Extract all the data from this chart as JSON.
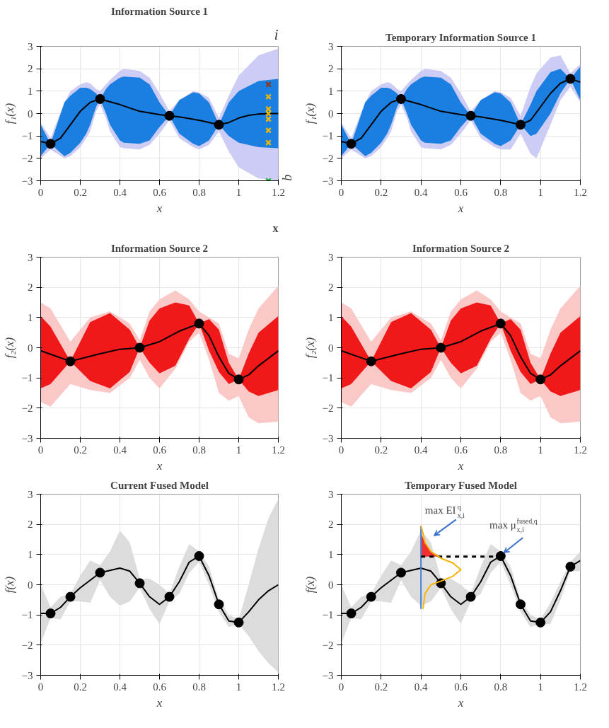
{
  "chart_data": [
    {
      "type": "line",
      "title": "Information Source 1",
      "xlabel": "x",
      "ylabel": "f₁(x)",
      "xlim": [
        0,
        1.2
      ],
      "ylim": [
        -3,
        3
      ],
      "xticks": [
        0,
        0.2,
        0.4,
        0.6,
        0.8,
        1,
        1.2
      ],
      "yticks": [
        -3,
        -2,
        -1,
        0,
        1,
        2,
        3
      ],
      "grid": true,
      "series": [
        {
          "color": "#ccccf5",
          "x": [
            0,
            0.05,
            0.12,
            0.15,
            0.2,
            0.23,
            0.25,
            0.28,
            0.3,
            0.33,
            0.35,
            0.4,
            0.42,
            0.5,
            0.55,
            0.6,
            0.65,
            0.7,
            0.77,
            0.8,
            0.85,
            0.9,
            0.95,
            1.0,
            1.1,
            1.2
          ],
          "values": [
            null,
            null,
            null,
            null,
            null,
            null,
            null,
            null,
            null,
            null,
            null,
            null,
            null,
            null,
            null,
            null,
            null,
            null,
            null,
            null,
            null,
            null,
            null,
            null,
            null,
            null
          ],
          "lower": [
            -2.0,
            -1.6,
            -2.0,
            -1.9,
            -1.5,
            -1.1,
            -0.8,
            0.1,
            0.4,
            -0.2,
            -0.8,
            -1.5,
            -1.55,
            -1.6,
            -1.4,
            -0.9,
            -0.3,
            -1.1,
            -1.5,
            -1.6,
            -1.4,
            -0.8,
            -1.7,
            -2.4,
            -2.9,
            -3.0
          ],
          "upper": [
            -0.4,
            -1.1,
            0.5,
            1.0,
            1.3,
            1.4,
            1.35,
            1.1,
            1.0,
            1.3,
            1.5,
            1.9,
            2.0,
            1.9,
            1.6,
            0.9,
            0.1,
            0.6,
            1.0,
            0.95,
            0.7,
            -0.2,
            0.8,
            1.7,
            2.6,
            2.9
          ]
        },
        {
          "color": "#1a7fe0",
          "x": [
            0,
            0.05,
            0.12,
            0.15,
            0.2,
            0.23,
            0.25,
            0.28,
            0.3,
            0.33,
            0.35,
            0.4,
            0.42,
            0.5,
            0.55,
            0.6,
            0.65,
            0.7,
            0.77,
            0.8,
            0.85,
            0.9,
            0.95,
            1.0,
            1.1,
            1.2
          ],
          "values": [
            null,
            null,
            null,
            null,
            null,
            null,
            null,
            null,
            null,
            null,
            null,
            null,
            null,
            null,
            null,
            null,
            null,
            null,
            null,
            null,
            null,
            null,
            null,
            null,
            null,
            null
          ],
          "lower": [
            -1.9,
            -1.35,
            -1.9,
            -1.75,
            -1.3,
            -0.9,
            -0.5,
            0.3,
            0.65,
            0.0,
            -0.5,
            -1.2,
            -1.3,
            -1.35,
            -1.2,
            -0.6,
            -0.1,
            -0.9,
            -1.35,
            -1.45,
            -1.2,
            -0.5,
            -1.0,
            -1.3,
            -1.5,
            -1.55
          ],
          "upper": [
            -0.5,
            -1.35,
            0.5,
            0.8,
            1.15,
            1.15,
            1.1,
            0.9,
            0.65,
            1.1,
            1.3,
            1.6,
            1.65,
            1.6,
            1.3,
            0.5,
            -0.1,
            0.6,
            0.95,
            0.9,
            0.5,
            -0.5,
            0.5,
            1.0,
            1.45,
            1.55
          ]
        },
        {
          "color": "#000000",
          "x": [
            0,
            0.05,
            0.1,
            0.15,
            0.2,
            0.25,
            0.3,
            0.4,
            0.5,
            0.6,
            0.65,
            0.7,
            0.8,
            0.9,
            0.95,
            1.0,
            1.05,
            1.1,
            1.15,
            1.2
          ],
          "values": [
            -1.25,
            -1.35,
            -1.1,
            -0.5,
            0.1,
            0.5,
            0.65,
            0.4,
            0.1,
            -0.05,
            -0.1,
            -0.15,
            -0.3,
            -0.5,
            -0.4,
            -0.2,
            -0.08,
            -0.02,
            0,
            0
          ]
        },
        {
          "type": "scatter",
          "color": "#000000",
          "marker": "circle",
          "x": [
            0.05,
            0.3,
            0.65,
            0.9
          ],
          "values": [
            -1.35,
            0.65,
            -0.1,
            -0.5
          ]
        },
        {
          "type": "scatter",
          "marker": "cross",
          "colors": [
            "#8b3a1a",
            "#f2b800",
            "#f2b800",
            "#f2b800",
            "#f2b800",
            "#f2b800",
            "#f2b800",
            "#20b040"
          ],
          "x": [
            1.15,
            1.15,
            1.15,
            1.15,
            1.15,
            1.15,
            1.15,
            1.15
          ],
          "values": [
            1.3,
            0.75,
            0.2,
            0,
            -0.25,
            -0.75,
            -1.3,
            -3.0
          ]
        }
      ],
      "annotations": [
        "i",
        "q",
        "x"
      ]
    },
    {
      "type": "line",
      "title": "Temporary Information Source 1",
      "xlabel": "x",
      "ylabel": "f₁(x)",
      "xlim": [
        0,
        1.2
      ],
      "ylim": [
        -3,
        3
      ],
      "xticks": [
        0,
        0.2,
        0.4,
        0.6,
        0.8,
        1,
        1.2
      ],
      "yticks": [
        -3,
        -2,
        -1,
        0,
        1,
        2,
        3
      ],
      "grid": true,
      "series": [
        {
          "color": "#ccccf5",
          "x": [
            0,
            0.05,
            0.12,
            0.15,
            0.2,
            0.23,
            0.25,
            0.28,
            0.3,
            0.33,
            0.35,
            0.4,
            0.42,
            0.5,
            0.55,
            0.6,
            0.65,
            0.7,
            0.77,
            0.8,
            0.85,
            0.9,
            0.95,
            0.98,
            1.05,
            1.1,
            1.15,
            1.2
          ],
          "values": [
            null,
            null,
            null,
            null,
            null,
            null,
            null,
            null,
            null,
            null,
            null,
            null,
            null,
            null,
            null,
            null,
            null,
            null,
            null,
            null,
            null,
            null,
            null,
            null,
            null,
            null,
            null,
            null
          ],
          "lower": [
            -2.0,
            -1.6,
            -2.0,
            -1.9,
            -1.5,
            -1.1,
            -0.8,
            0.1,
            0.4,
            -0.2,
            -0.8,
            -1.5,
            -1.55,
            -1.6,
            -1.4,
            -0.9,
            -0.3,
            -1.1,
            -1.5,
            -1.6,
            -1.6,
            -0.9,
            -1.8,
            -2.0,
            -0.5,
            0.6,
            1.2,
            0.5
          ],
          "upper": [
            -0.4,
            -1.1,
            0.5,
            1.0,
            1.3,
            1.4,
            1.35,
            1.1,
            1.0,
            1.3,
            1.5,
            1.9,
            2.0,
            1.9,
            1.6,
            0.9,
            0.1,
            0.6,
            1.0,
            0.95,
            0.7,
            -0.1,
            1.2,
            1.8,
            2.5,
            2.6,
            1.8,
            2.2
          ]
        },
        {
          "color": "#1a7fe0",
          "x": [
            0,
            0.05,
            0.12,
            0.15,
            0.2,
            0.23,
            0.25,
            0.28,
            0.3,
            0.33,
            0.35,
            0.4,
            0.42,
            0.5,
            0.55,
            0.6,
            0.65,
            0.7,
            0.77,
            0.8,
            0.85,
            0.9,
            0.95,
            0.98,
            1.05,
            1.1,
            1.15,
            1.2
          ],
          "values": [
            null,
            null,
            null,
            null,
            null,
            null,
            null,
            null,
            null,
            null,
            null,
            null,
            null,
            null,
            null,
            null,
            null,
            null,
            null,
            null,
            null,
            null,
            null,
            null,
            null,
            null,
            null,
            null
          ],
          "lower": [
            -1.9,
            -1.35,
            -1.9,
            -1.75,
            -1.3,
            -0.9,
            -0.5,
            0.3,
            0.65,
            0.0,
            -0.5,
            -1.2,
            -1.3,
            -1.35,
            -1.2,
            -0.6,
            -0.1,
            -0.9,
            -1.35,
            -1.45,
            -1.2,
            -0.5,
            -1.0,
            -0.9,
            0.0,
            0.9,
            1.55,
            0.6
          ],
          "upper": [
            -0.5,
            -1.35,
            0.5,
            0.8,
            1.15,
            1.15,
            1.1,
            0.9,
            0.65,
            1.1,
            1.3,
            1.6,
            1.65,
            1.6,
            1.3,
            0.5,
            -0.1,
            0.6,
            0.95,
            0.9,
            0.5,
            -0.5,
            0.4,
            1.0,
            1.85,
            2.0,
            1.55,
            2.1
          ]
        },
        {
          "color": "#000000",
          "x": [
            0,
            0.05,
            0.1,
            0.15,
            0.2,
            0.25,
            0.3,
            0.4,
            0.5,
            0.6,
            0.65,
            0.7,
            0.8,
            0.9,
            0.95,
            1.0,
            1.05,
            1.1,
            1.15,
            1.2
          ],
          "values": [
            -1.25,
            -1.35,
            -1.1,
            -0.5,
            0.1,
            0.5,
            0.65,
            0.4,
            0.1,
            -0.05,
            -0.1,
            -0.15,
            -0.3,
            -0.5,
            -0.3,
            0.3,
            0.9,
            1.35,
            1.55,
            1.4
          ]
        },
        {
          "type": "scatter",
          "color": "#000000",
          "marker": "circle",
          "x": [
            0.05,
            0.3,
            0.65,
            0.9,
            1.15
          ],
          "values": [
            -1.35,
            0.65,
            -0.1,
            -0.5,
            1.55
          ]
        }
      ]
    },
    {
      "type": "line",
      "title": "Information Source 2",
      "xlabel": "x",
      "ylabel": "f₂(x)",
      "xlim": [
        0,
        1.2
      ],
      "ylim": [
        -3,
        3
      ],
      "xticks": [
        0,
        0.2,
        0.4,
        0.6,
        0.8,
        1,
        1.2
      ],
      "yticks": [
        -3,
        -2,
        -1,
        0,
        1,
        2,
        3
      ],
      "grid": true,
      "series": [
        {
          "color": "#fbc8c8",
          "x": [
            0,
            0.05,
            0.15,
            0.25,
            0.35,
            0.45,
            0.5,
            0.55,
            0.6,
            0.68,
            0.75,
            0.8,
            0.85,
            0.9,
            0.95,
            1.0,
            1.05,
            1.1,
            1.2
          ],
          "values": [
            null,
            null,
            null,
            null,
            null,
            null,
            null,
            null,
            null,
            null,
            null,
            null,
            null,
            null,
            null,
            null,
            null,
            null,
            null
          ],
          "lower": [
            -1.8,
            -1.95,
            -1.2,
            -1.4,
            -1.5,
            -1.0,
            -0.4,
            -1.0,
            -1.35,
            -0.7,
            0.2,
            0.5,
            -0.4,
            -1.5,
            -1.75,
            -1.6,
            -2.3,
            -2.5,
            -2.45
          ],
          "upper": [
            1.5,
            1.3,
            0.2,
            1.0,
            1.2,
            0.8,
            0.25,
            1.2,
            1.6,
            1.9,
            1.6,
            1.2,
            1.0,
            0.8,
            -0.2,
            -0.35,
            0.6,
            1.3,
            2.05
          ]
        },
        {
          "color": "#f01818",
          "x": [
            0,
            0.05,
            0.15,
            0.25,
            0.35,
            0.45,
            0.5,
            0.55,
            0.6,
            0.68,
            0.75,
            0.8,
            0.85,
            0.9,
            0.95,
            1.0,
            1.05,
            1.1,
            1.2
          ],
          "values": [
            null,
            null,
            null,
            null,
            null,
            null,
            null,
            null,
            null,
            null,
            null,
            null,
            null,
            null,
            null,
            null,
            null,
            null,
            null
          ],
          "lower": [
            -1.35,
            -1.2,
            -0.45,
            -1.1,
            -1.35,
            -0.8,
            0,
            -0.5,
            -0.85,
            -0.6,
            0.3,
            0.8,
            -0.1,
            -0.8,
            -1.2,
            -1.05,
            -1.45,
            -1.6,
            -1.4
          ],
          "upper": [
            1.05,
            0.7,
            -0.45,
            0.85,
            1.15,
            0.6,
            0,
            0.9,
            1.3,
            1.5,
            1.4,
            0.8,
            0.95,
            0.6,
            -0.5,
            -1.05,
            -0.2,
            0.5,
            1.05
          ]
        },
        {
          "color": "#000000",
          "x": [
            0,
            0.15,
            0.3,
            0.4,
            0.5,
            0.6,
            0.7,
            0.8,
            0.85,
            0.9,
            0.95,
            1.0,
            1.05,
            1.1,
            1.2
          ],
          "values": [
            -0.1,
            -0.45,
            -0.2,
            -0.05,
            0,
            0.2,
            0.55,
            0.8,
            0.4,
            -0.3,
            -0.85,
            -1.05,
            -0.9,
            -0.6,
            -0.1
          ]
        },
        {
          "type": "scatter",
          "color": "#000000",
          "marker": "circle",
          "x": [
            0.15,
            0.5,
            0.8,
            1.0
          ],
          "values": [
            -0.45,
            0,
            0.8,
            -1.05
          ]
        }
      ]
    },
    {
      "type": "line",
      "title": "Information Source 2",
      "xlabel": "x",
      "ylabel": "f₂(x)",
      "xlim": [
        0,
        1.2
      ],
      "ylim": [
        -3,
        3
      ],
      "xticks": [
        0,
        0.2,
        0.4,
        0.6,
        0.8,
        1,
        1.2
      ],
      "yticks": [
        -3,
        -2,
        -1,
        0,
        1,
        2,
        3
      ],
      "grid": true,
      "series": [
        {
          "color": "#fbc8c8",
          "x": [
            0,
            0.05,
            0.15,
            0.25,
            0.35,
            0.45,
            0.5,
            0.55,
            0.6,
            0.68,
            0.75,
            0.8,
            0.85,
            0.9,
            0.95,
            1.0,
            1.05,
            1.1,
            1.2
          ],
          "values": [
            null,
            null,
            null,
            null,
            null,
            null,
            null,
            null,
            null,
            null,
            null,
            null,
            null,
            null,
            null,
            null,
            null,
            null,
            null
          ],
          "lower": [
            -1.8,
            -1.95,
            -1.2,
            -1.4,
            -1.5,
            -1.0,
            -0.4,
            -1.0,
            -1.35,
            -0.7,
            0.2,
            0.5,
            -0.4,
            -1.5,
            -1.75,
            -1.6,
            -2.3,
            -2.5,
            -2.45
          ],
          "upper": [
            1.5,
            1.3,
            0.2,
            1.0,
            1.2,
            0.8,
            0.25,
            1.2,
            1.6,
            1.9,
            1.6,
            1.2,
            1.0,
            0.8,
            -0.2,
            -0.35,
            0.6,
            1.3,
            2.05
          ]
        },
        {
          "color": "#f01818",
          "x": [
            0,
            0.05,
            0.15,
            0.25,
            0.35,
            0.45,
            0.5,
            0.55,
            0.6,
            0.68,
            0.75,
            0.8,
            0.85,
            0.9,
            0.95,
            1.0,
            1.05,
            1.1,
            1.2
          ],
          "values": [
            null,
            null,
            null,
            null,
            null,
            null,
            null,
            null,
            null,
            null,
            null,
            null,
            null,
            null,
            null,
            null,
            null,
            null,
            null
          ],
          "lower": [
            -1.35,
            -1.2,
            -0.45,
            -1.1,
            -1.35,
            -0.8,
            0,
            -0.5,
            -0.85,
            -0.6,
            0.3,
            0.8,
            -0.1,
            -0.8,
            -1.2,
            -1.05,
            -1.45,
            -1.6,
            -1.4
          ],
          "upper": [
            1.05,
            0.7,
            -0.45,
            0.85,
            1.15,
            0.6,
            0,
            0.9,
            1.3,
            1.5,
            1.4,
            0.8,
            0.95,
            0.6,
            -0.5,
            -1.05,
            -0.2,
            0.5,
            1.05
          ]
        },
        {
          "color": "#000000",
          "x": [
            0,
            0.15,
            0.3,
            0.4,
            0.5,
            0.6,
            0.7,
            0.8,
            0.85,
            0.9,
            0.95,
            1.0,
            1.05,
            1.1,
            1.2
          ],
          "values": [
            -0.1,
            -0.45,
            -0.2,
            -0.05,
            0,
            0.2,
            0.55,
            0.8,
            0.4,
            -0.3,
            -0.85,
            -1.05,
            -0.9,
            -0.6,
            -0.1
          ]
        },
        {
          "type": "scatter",
          "color": "#000000",
          "marker": "circle",
          "x": [
            0.15,
            0.5,
            0.8,
            1.0
          ],
          "values": [
            -0.45,
            0,
            0.8,
            -1.05
          ]
        }
      ]
    },
    {
      "type": "line",
      "title": "Current Fused Model",
      "xlabel": "x",
      "ylabel": "f(x)",
      "xlim": [
        0,
        1.2
      ],
      "ylim": [
        -3,
        3
      ],
      "xticks": [
        0,
        0.2,
        0.4,
        0.6,
        0.8,
        1,
        1.2
      ],
      "yticks": [
        -3,
        -2,
        -1,
        0,
        1,
        2,
        3
      ],
      "grid": true,
      "series": [
        {
          "color": "#dcdcdc",
          "x": [
            0,
            0.05,
            0.1,
            0.15,
            0.2,
            0.25,
            0.3,
            0.35,
            0.4,
            0.45,
            0.5,
            0.55,
            0.6,
            0.65,
            0.7,
            0.75,
            0.8,
            0.85,
            0.9,
            0.95,
            1.0,
            1.05,
            1.1,
            1.15,
            1.2
          ],
          "values": [
            null,
            null,
            null,
            null,
            null,
            null,
            null,
            null,
            null,
            null,
            null,
            null,
            null,
            null,
            null,
            null,
            null,
            null,
            null,
            null,
            null,
            null,
            null,
            null,
            null
          ],
          "lower": [
            -1.95,
            -1.1,
            -1.15,
            -0.55,
            -0.55,
            -0.6,
            0.15,
            -0.4,
            -0.7,
            -0.55,
            -0.1,
            -0.8,
            -1.3,
            -0.55,
            -0.3,
            0.4,
            0.75,
            0.0,
            -0.9,
            -1.4,
            -1.3,
            -1.7,
            -2.2,
            -2.6,
            -2.9
          ],
          "upper": [
            0,
            -0.75,
            -0.4,
            -0.3,
            0.3,
            0.8,
            0.65,
            1.1,
            1.8,
            1.4,
            0.2,
            0.2,
            0,
            -0.3,
            0.6,
            1.35,
            1.1,
            0.6,
            -0.5,
            -1.0,
            -1.15,
            0.0,
            1.2,
            2.2,
            2.85
          ]
        },
        {
          "color": "#000000",
          "x": [
            0,
            0.05,
            0.1,
            0.15,
            0.2,
            0.3,
            0.4,
            0.45,
            0.5,
            0.55,
            0.6,
            0.65,
            0.7,
            0.75,
            0.8,
            0.85,
            0.9,
            0.95,
            1.0,
            1.05,
            1.1,
            1.15,
            1.2
          ],
          "values": [
            -0.95,
            -0.95,
            -0.75,
            -0.4,
            -0.1,
            0.4,
            0.55,
            0.45,
            0.05,
            -0.4,
            -0.65,
            -0.4,
            0.1,
            0.75,
            0.95,
            0.3,
            -0.65,
            -1.2,
            -1.25,
            -0.9,
            -0.5,
            -0.2,
            0
          ]
        },
        {
          "type": "scatter",
          "color": "#000000",
          "marker": "circle",
          "x": [
            0.05,
            0.15,
            0.3,
            0.5,
            0.65,
            0.8,
            0.9,
            1.0
          ],
          "values": [
            -0.95,
            -0.4,
            0.4,
            0.05,
            -0.4,
            0.95,
            -0.65,
            -1.25
          ]
        }
      ]
    },
    {
      "type": "line",
      "title": "Temporary Fused Model",
      "xlabel": "x",
      "ylabel": "f(x)",
      "xlim": [
        0,
        1.2
      ],
      "ylim": [
        -3,
        3
      ],
      "xticks": [
        0,
        0.2,
        0.4,
        0.6,
        0.8,
        1,
        1.2
      ],
      "yticks": [
        -3,
        -2,
        -1,
        0,
        1,
        2,
        3
      ],
      "grid": true,
      "series": [
        {
          "color": "#dcdcdc",
          "x": [
            0,
            0.05,
            0.1,
            0.15,
            0.2,
            0.25,
            0.3,
            0.35,
            0.4,
            0.45,
            0.5,
            0.55,
            0.6,
            0.65,
            0.7,
            0.75,
            0.8,
            0.85,
            0.9,
            0.95,
            1.0,
            1.05,
            1.1,
            1.15,
            1.2
          ],
          "values": [
            null,
            null,
            null,
            null,
            null,
            null,
            null,
            null,
            null,
            null,
            null,
            null,
            null,
            null,
            null,
            null,
            null,
            null,
            null,
            null,
            null,
            null,
            null,
            null,
            null
          ],
          "lower": [
            -1.95,
            -1.1,
            -1.15,
            -0.55,
            -0.55,
            -0.6,
            0.15,
            -0.4,
            -0.7,
            -0.55,
            -0.1,
            -0.8,
            -1.3,
            -0.55,
            -0.3,
            0.4,
            0.75,
            0.0,
            -0.9,
            -1.4,
            -1.3,
            -1.3,
            -0.5,
            0.45,
            0.45
          ],
          "upper": [
            0,
            -0.75,
            -0.4,
            -0.3,
            0.3,
            0.8,
            0.65,
            1.1,
            1.8,
            1.4,
            0.2,
            0.2,
            0,
            -0.3,
            0.6,
            1.35,
            1.1,
            0.6,
            -0.5,
            -1.0,
            -1.15,
            -0.6,
            0.1,
            0.75,
            1.1
          ]
        },
        {
          "color": "#000000",
          "x": [
            0,
            0.05,
            0.1,
            0.15,
            0.2,
            0.3,
            0.4,
            0.45,
            0.5,
            0.55,
            0.6,
            0.65,
            0.7,
            0.75,
            0.8,
            0.85,
            0.9,
            0.95,
            1.0,
            1.05,
            1.1,
            1.15,
            1.2
          ],
          "values": [
            -0.95,
            -0.95,
            -0.75,
            -0.4,
            -0.1,
            0.4,
            0.55,
            0.45,
            0.05,
            -0.4,
            -0.65,
            -0.4,
            0.1,
            0.75,
            0.95,
            0.3,
            -0.65,
            -1.2,
            -1.25,
            -0.9,
            -0.2,
            0.6,
            0.8
          ]
        },
        {
          "type": "scatter",
          "color": "#000000",
          "marker": "circle",
          "x": [
            0.05,
            0.15,
            0.3,
            0.5,
            0.65,
            0.8,
            0.9,
            1.0,
            1.15
          ],
          "values": [
            -0.95,
            -0.4,
            0.4,
            0.05,
            -0.4,
            0.95,
            -0.65,
            -1.25,
            0.6
          ]
        },
        {
          "color": "#f03030",
          "x": [
            0.4,
            0.42,
            0.45,
            0.5
          ],
          "values": [
            null,
            null,
            null,
            null
          ],
          "lower": [
            0.93,
            0.93,
            0.93,
            0.93
          ],
          "upper": [
            1.7,
            1.4,
            1.1,
            0.93
          ]
        },
        {
          "color": "#4a7fd8",
          "x": [
            0.4,
            0.4
          ],
          "values": [
            -0.8,
            1.95
          ]
        },
        {
          "color": "#000000",
          "line_style": "dashed",
          "x": [
            0.4,
            0.8
          ],
          "values": [
            0.93,
            0.93
          ]
        },
        {
          "color": "#f5b400",
          "x": [
            0.41,
            0.42,
            0.45,
            0.5,
            0.56,
            0.6,
            0.56,
            0.5,
            0.45,
            0.42,
            0.41,
            0.4
          ],
          "values": [
            -0.8,
            -0.3,
            0.0,
            0.12,
            0.28,
            0.5,
            0.72,
            0.88,
            1.1,
            1.4,
            1.7,
            1.95
          ]
        }
      ],
      "annotations": [
        {
          "text": "max EI$^{q}$$_{x,i}$",
          "x": 0.45,
          "y": 1.5
        },
        {
          "text": "max μ$^{fused,q}$$_{x,i}$",
          "x": 0.8,
          "y": 0.93
        }
      ]
    }
  ]
}
